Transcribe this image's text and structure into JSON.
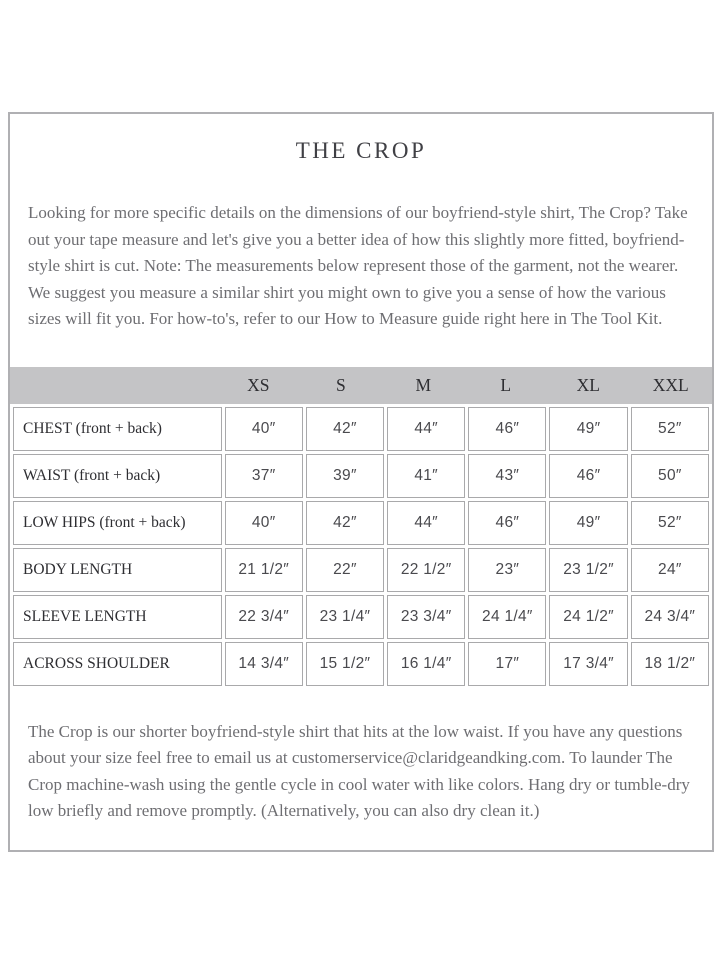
{
  "page": {
    "title": "THE CROP"
  },
  "intro_text": "Looking for more specific details on the dimensions of our boyfriend-style shirt, The Crop? Take out your tape measure and let's give you a better idea of how this slightly more fitted, boyfriend-style shirt is cut. Note: The measurements below represent those of the garment, not the wearer. We suggest you measure a similar shirt you might own to give you a sense of how the various sizes will fit you. For how-to's, refer to our How to Measure guide right here in The Tool Kit.",
  "size_table": {
    "columns": [
      "XS",
      "S",
      "M",
      "L",
      "XL",
      "XXL"
    ],
    "rows": [
      {
        "label": "CHEST (front + back)",
        "values": [
          "40″",
          "42″",
          "44″",
          "46″",
          "49″",
          "52″"
        ]
      },
      {
        "label": "WAIST (front + back)",
        "values": [
          "37″",
          "39″",
          "41″",
          "43″",
          "46″",
          "50″"
        ]
      },
      {
        "label": "LOW HIPS (front + back)",
        "values": [
          "40″",
          "42″",
          "44″",
          "46″",
          "49″",
          "52″"
        ]
      },
      {
        "label": "BODY LENGTH",
        "values": [
          "21 1/2″",
          "22″",
          "22 1/2″",
          "23″",
          "23 1/2″",
          "24″"
        ]
      },
      {
        "label": "SLEEVE LENGTH",
        "values": [
          "22 3/4″",
          "23 1/4″",
          "23 3/4″",
          "24 1/4″",
          "24 1/2″",
          "24 3/4″"
        ]
      },
      {
        "label": "ACROSS SHOULDER",
        "values": [
          "14 3/4″",
          "15 1/2″",
          "16 1/4″",
          "17″",
          "17 3/4″",
          "18 1/2″"
        ]
      }
    ]
  },
  "footer_text": "The Crop is our shorter boyfriend-style shirt that hits at the low waist. If you have any questions about your size feel free to email us at customerservice@claridgeandking.com. To launder The Crop machine-wash using the gentle cycle in cool water with like colors. Hang dry or tumble-dry low briefly and remove promptly. (Alternatively, you can also dry clean it.)",
  "colors": {
    "frame_border": "#b0b0b3",
    "header_band": "#c4c4c6",
    "cell_border": "#a9a9ab",
    "body_text": "#6e6e72",
    "title_text": "#404045"
  }
}
